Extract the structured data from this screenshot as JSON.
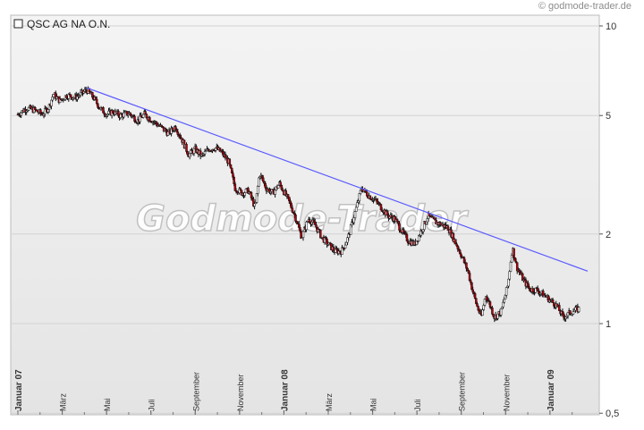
{
  "copyright": "© godmode-trader.de",
  "watermark": "Godmode-Trader",
  "chart_data": {
    "type": "candlestick",
    "title": "QSC AG NA O.N.",
    "y_scale": "log",
    "ylim": [
      0.5,
      11
    ],
    "y_ticks": [
      {
        "value": 10,
        "label": "10"
      },
      {
        "value": 5,
        "label": "5"
      },
      {
        "value": 2,
        "label": "2"
      },
      {
        "value": 1,
        "label": "1"
      },
      {
        "value": 0.5,
        "label": "0,5"
      }
    ],
    "x_ticks": [
      {
        "t": 0,
        "label": "Januar 07",
        "major": true
      },
      {
        "t": 2,
        "label": "März",
        "major": false
      },
      {
        "t": 4,
        "label": "Mai",
        "major": false
      },
      {
        "t": 6,
        "label": "Juli",
        "major": false
      },
      {
        "t": 8,
        "label": "September",
        "major": false
      },
      {
        "t": 10,
        "label": "November",
        "major": false
      },
      {
        "t": 12,
        "label": "Januar 08",
        "major": true
      },
      {
        "t": 14,
        "label": "März",
        "major": false
      },
      {
        "t": 16,
        "label": "Mai",
        "major": false
      },
      {
        "t": 18,
        "label": "Juli",
        "major": false
      },
      {
        "t": 20,
        "label": "September",
        "major": false
      },
      {
        "t": 22,
        "label": "November",
        "major": false
      },
      {
        "t": 24,
        "label": "Januar 09",
        "major": true
      }
    ],
    "xlim": [
      0,
      25.7
    ],
    "price_path": [
      [
        0.0,
        5.05
      ],
      [
        0.4,
        5.3
      ],
      [
        0.8,
        5.2
      ],
      [
        1.1,
        5.05
      ],
      [
        1.4,
        5.35
      ],
      [
        1.6,
        5.9
      ],
      [
        1.9,
        5.6
      ],
      [
        2.2,
        5.85
      ],
      [
        2.6,
        5.75
      ],
      [
        2.9,
        5.95
      ],
      [
        3.1,
        6.1
      ],
      [
        3.4,
        5.75
      ],
      [
        3.7,
        5.3
      ],
      [
        4.0,
        5.05
      ],
      [
        4.3,
        5.15
      ],
      [
        4.6,
        5.0
      ],
      [
        5.0,
        5.1
      ],
      [
        5.4,
        4.8
      ],
      [
        5.7,
        5.05
      ],
      [
        6.0,
        4.85
      ],
      [
        6.4,
        4.6
      ],
      [
        6.8,
        4.35
      ],
      [
        7.1,
        4.6
      ],
      [
        7.4,
        4.15
      ],
      [
        7.7,
        3.7
      ],
      [
        8.0,
        3.85
      ],
      [
        8.3,
        3.65
      ],
      [
        8.6,
        3.85
      ],
      [
        8.9,
        3.9
      ],
      [
        9.2,
        3.75
      ],
      [
        9.5,
        3.5
      ],
      [
        9.8,
        2.85
      ],
      [
        10.1,
        2.75
      ],
      [
        10.4,
        2.8
      ],
      [
        10.7,
        2.45
      ],
      [
        10.9,
        3.2
      ],
      [
        11.2,
        2.85
      ],
      [
        11.5,
        2.75
      ],
      [
        11.8,
        2.95
      ],
      [
        12.2,
        2.6
      ],
      [
        12.5,
        2.3
      ],
      [
        12.8,
        1.95
      ],
      [
        13.1,
        2.25
      ],
      [
        13.4,
        2.15
      ],
      [
        13.7,
        1.95
      ],
      [
        14.0,
        1.85
      ],
      [
        14.3,
        1.75
      ],
      [
        14.6,
        1.75
      ],
      [
        14.9,
        1.95
      ],
      [
        15.2,
        2.35
      ],
      [
        15.5,
        2.85
      ],
      [
        15.8,
        2.7
      ],
      [
        16.1,
        2.6
      ],
      [
        16.4,
        2.45
      ],
      [
        16.7,
        2.3
      ],
      [
        17.0,
        2.25
      ],
      [
        17.3,
        2.05
      ],
      [
        17.6,
        1.9
      ],
      [
        17.9,
        1.85
      ],
      [
        18.2,
        2.05
      ],
      [
        18.5,
        2.3
      ],
      [
        18.8,
        2.2
      ],
      [
        19.1,
        2.15
      ],
      [
        19.4,
        2.1
      ],
      [
        19.7,
        1.9
      ],
      [
        20.0,
        1.7
      ],
      [
        20.3,
        1.5
      ],
      [
        20.5,
        1.3
      ],
      [
        20.7,
        1.15
      ],
      [
        20.9,
        1.05
      ],
      [
        21.1,
        1.25
      ],
      [
        21.3,
        1.15
      ],
      [
        21.5,
        1.05
      ],
      [
        21.8,
        1.1
      ],
      [
        22.1,
        1.35
      ],
      [
        22.3,
        1.8
      ],
      [
        22.5,
        1.55
      ],
      [
        22.8,
        1.4
      ],
      [
        23.1,
        1.3
      ],
      [
        23.4,
        1.3
      ],
      [
        23.7,
        1.25
      ],
      [
        24.0,
        1.2
      ],
      [
        24.3,
        1.15
      ],
      [
        24.6,
        1.05
      ],
      [
        25.0,
        1.1
      ],
      [
        25.3,
        1.12
      ]
    ],
    "trendline": {
      "start": {
        "t": 3.1,
        "value": 6.2
      },
      "end": {
        "t": 25.7,
        "value": 1.5
      }
    },
    "colors": {
      "background": "#ffffff",
      "plot_gradient_top": "#f4f4f4",
      "plot_gradient_bottom": "#e4e4e4",
      "grid": "#d3d3d3",
      "candle_up": "#ffffff",
      "candle_down": "#b3000c",
      "wick": "#111111",
      "trendline": "#5b5bff"
    }
  }
}
